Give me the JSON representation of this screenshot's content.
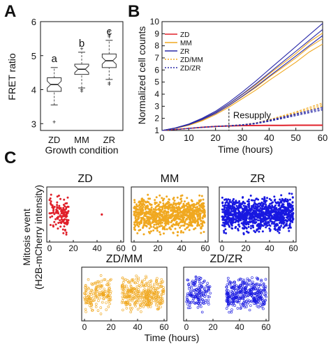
{
  "panels": {
    "a": "A",
    "b": "B",
    "c": "C"
  },
  "chart_data": [
    {
      "type": "box",
      "panel": "A",
      "categories": [
        "ZD",
        "MM",
        "ZR"
      ],
      "ylabel": "FRET ratio",
      "xlabel": "Growth condition",
      "ylim": [
        2.8,
        6
      ],
      "yticks": [
        "3",
        "4",
        "5",
        "6"
      ],
      "significance_letters": [
        "a",
        "b",
        "c"
      ],
      "boxes": [
        {
          "category": "ZD",
          "whisker_low": 3.55,
          "q1": 3.95,
          "median": 4.15,
          "q3": 4.35,
          "whisker_high": 4.65,
          "outliers": [
            3.05
          ]
        },
        {
          "category": "MM",
          "whisker_low": 4.05,
          "q1": 4.45,
          "median": 4.6,
          "q3": 4.75,
          "whisker_high": 5.1,
          "outliers": [
            3.95,
            4.0,
            5.2
          ]
        },
        {
          "category": "ZR",
          "whisker_low": 4.3,
          "q1": 4.65,
          "median": 4.85,
          "q3": 5.05,
          "whisker_high": 5.45,
          "outliers": [
            4.15,
            4.2,
            5.55,
            5.6,
            5.7
          ]
        }
      ]
    },
    {
      "type": "line",
      "panel": "B",
      "xlabel": "Time (hours)",
      "ylabel": "Normalized cell counts",
      "xlim": [
        0,
        60
      ],
      "ylim": [
        1,
        10
      ],
      "xticks": [
        "0",
        "10",
        "20",
        "30",
        "40",
        "50",
        "60"
      ],
      "yticks": [
        "1",
        "2",
        "3",
        "4",
        "5",
        "6",
        "7",
        "8",
        "9",
        "10"
      ],
      "annotation": "Resupply",
      "resupply_time": 25,
      "legend": [
        "ZD",
        "MM",
        "ZR",
        "ZD/MM",
        "ZD/ZR"
      ],
      "legend_position": "top-left",
      "series": [
        {
          "name": "ZD",
          "color": "#e0202a",
          "style": "solid",
          "x": [
            0,
            5,
            10,
            15,
            20,
            25,
            30,
            35,
            40,
            45,
            50,
            55,
            60
          ],
          "y": [
            1,
            1.08,
            1.17,
            1.26,
            1.33,
            1.37,
            1.4,
            1.41,
            1.42,
            1.42,
            1.43,
            1.43,
            1.43
          ]
        },
        {
          "name": "MM",
          "color": "#f0a820",
          "style": "solid",
          "x": [
            0,
            5,
            10,
            15,
            20,
            25,
            30,
            35,
            40,
            45,
            50,
            55,
            60
          ],
          "y": [
            1,
            1.18,
            1.45,
            1.85,
            2.4,
            3.05,
            3.8,
            4.55,
            5.4,
            6.2,
            7.0,
            7.9,
            8.6
          ]
        },
        {
          "name": "ZR",
          "color": "#2a2aa8",
          "style": "solid",
          "x": [
            0,
            5,
            10,
            15,
            20,
            25,
            30,
            35,
            40,
            45,
            50,
            55,
            60
          ],
          "y": [
            1,
            1.2,
            1.5,
            1.95,
            2.5,
            3.2,
            4.0,
            4.85,
            5.75,
            6.65,
            7.55,
            8.45,
            9.35
          ]
        },
        {
          "name": "ZD/MM",
          "color": "#f0a820",
          "style": "dotted",
          "x": [
            0,
            5,
            10,
            15,
            20,
            25,
            30,
            35,
            40,
            45,
            50,
            55,
            60
          ],
          "y": [
            1,
            1.08,
            1.17,
            1.26,
            1.33,
            1.38,
            1.45,
            1.6,
            1.85,
            2.15,
            2.45,
            2.8,
            3.15
          ]
        },
        {
          "name": "ZD/ZR",
          "color": "#2a2aa8",
          "style": "dotted",
          "x": [
            0,
            5,
            10,
            15,
            20,
            25,
            30,
            35,
            40,
            45,
            50,
            55,
            60
          ],
          "y": [
            1,
            1.08,
            1.17,
            1.26,
            1.33,
            1.38,
            1.45,
            1.58,
            1.8,
            2.05,
            2.3,
            2.55,
            2.8
          ]
        }
      ]
    },
    {
      "type": "scatter",
      "panel": "C",
      "ylabel_line1": "Mitosis event",
      "ylabel_line2": "(H2B-mCherry intensity)",
      "xlabel": "Time (hours)",
      "xlim": [
        0,
        60
      ],
      "subplots": [
        {
          "title": "ZD",
          "color": "#e0202a",
          "xticks": [
            "0",
            "20",
            "40",
            "60"
          ],
          "ranges": [
            [
              0,
              16,
              130
            ]
          ],
          "extra_points": [
            [
              44,
              0.5
            ]
          ],
          "marker": "filled"
        },
        {
          "title": "MM",
          "color": "#f0a820",
          "xticks": [
            "0",
            "20",
            "40",
            "60"
          ],
          "ranges": [
            [
              0,
              60,
              900
            ]
          ],
          "extra_points": [],
          "marker": "filled"
        },
        {
          "title": "ZR",
          "color": "#1818e0",
          "xticks": [
            "0",
            "20",
            "40",
            "60"
          ],
          "ranges": [
            [
              0,
              60,
              1100
            ]
          ],
          "extra_points": [],
          "marker": "filled"
        },
        {
          "title": "ZD/MM",
          "color": "#f0a820",
          "xticks": [
            "0",
            "20",
            "40",
            "60"
          ],
          "ranges": [
            [
              0,
              20,
              160
            ],
            [
              28,
              60,
              340
            ]
          ],
          "extra_points": [],
          "marker": "open"
        },
        {
          "title": "ZD/ZR",
          "color": "#1818e0",
          "xticks": [
            "0",
            "20",
            "40",
            "60"
          ],
          "ranges": [
            [
              0,
              18,
              150
            ],
            [
              30,
              60,
              360
            ]
          ],
          "extra_points": [],
          "marker": "open"
        }
      ]
    }
  ]
}
